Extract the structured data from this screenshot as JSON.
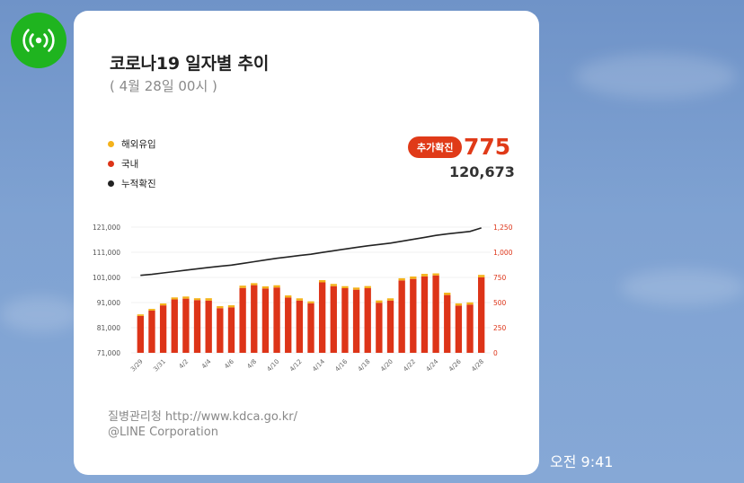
{
  "message": {
    "title": "코로나19 일자별 추이",
    "subtitle": "( 4월 28일 00시 )",
    "legend": [
      {
        "label": "해외유입",
        "color": "#f4b21b"
      },
      {
        "label": "국내",
        "color": "#dd3418"
      },
      {
        "label": "누적확진",
        "color": "#222222"
      }
    ],
    "badge_label": "추가확진",
    "added_count": "775",
    "total_count": "120,673",
    "source_label": "질병관리청  http://www.kdca.go.kr/",
    "copyright": "@LINE Corporation",
    "time": "오전 9:41",
    "avatar_icon": "broadcast-icon"
  },
  "chart_data": {
    "type": "bar",
    "categories": [
      "3/29",
      "3/30",
      "3/31",
      "4/1",
      "4/2",
      "4/3",
      "4/4",
      "4/5",
      "4/6",
      "4/7",
      "4/8",
      "4/9",
      "4/10",
      "4/11",
      "4/12",
      "4/13",
      "4/14",
      "4/15",
      "4/16",
      "4/17",
      "4/18",
      "4/19",
      "4/20",
      "4/21",
      "4/22",
      "4/23",
      "4/24",
      "4/25",
      "4/26",
      "4/27",
      "4/28"
    ],
    "x_tick_labels": [
      "3/29",
      "",
      "3/31",
      "",
      "4/2",
      "",
      "4/4",
      "",
      "4/6",
      "",
      "4/8",
      "",
      "4/10",
      "",
      "4/12",
      "",
      "4/14",
      "",
      "4/16",
      "",
      "4/18",
      "",
      "4/20",
      "",
      "4/22",
      "",
      "4/24",
      "",
      "4/26",
      "",
      "4/28"
    ],
    "series": [
      {
        "name": "국내",
        "color": "#dd3418",
        "axis": "right",
        "values": [
          367,
          420,
          472,
          531,
          539,
          524,
          519,
          444,
          452,
          645,
          673,
          640,
          650,
          550,
          520,
          493,
          701,
          663,
          643,
          628,
          643,
          498,
          520,
          720,
          735,
          760,
          770,
          575,
          470,
          480,
          751
        ]
      },
      {
        "name": "해외유입",
        "color": "#f4b21b",
        "axis": "right",
        "values": [
          15,
          17,
          19,
          20,
          21,
          19,
          24,
          20,
          21,
          23,
          20,
          21,
          22,
          21,
          22,
          19,
          22,
          22,
          20,
          21,
          21,
          23,
          22,
          22,
          24,
          25,
          20,
          23,
          22,
          22,
          24
        ]
      },
      {
        "name": "누적확진",
        "color": "#222222",
        "axis": "left",
        "type": "line",
        "values": [
          101810,
          102230,
          102770,
          103320,
          103880,
          104420,
          104960,
          105430,
          105900,
          106570,
          107260,
          107920,
          108590,
          109160,
          109700,
          110210,
          110930,
          111610,
          112270,
          112920,
          113580,
          114100,
          114640,
          115380,
          116140,
          116920,
          117710,
          118300,
          118800,
          119300,
          120673
        ]
      }
    ],
    "y_left": {
      "ticks": [
        "121,000",
        "111,000",
        "101,000",
        "91,000",
        "81,000",
        "71,000"
      ],
      "ylim": [
        71000,
        121000
      ]
    },
    "y_right": {
      "ticks": [
        "1,250",
        "1,000",
        "750",
        "500",
        "250",
        "0"
      ],
      "ylim": [
        0,
        1250
      ],
      "color": "#dd3418"
    }
  }
}
